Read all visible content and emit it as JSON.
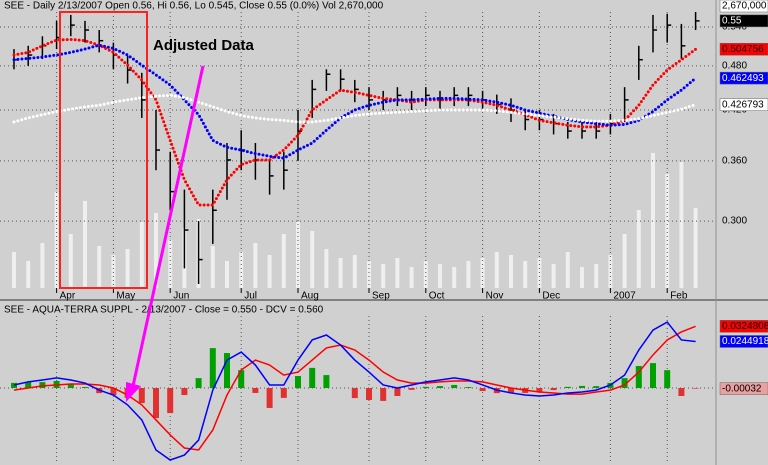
{
  "chart_data": [
    {
      "type": "ohlc",
      "title": "SEE - Daily 2/13/2007 Open 0.56, Hi 0.56, Lo 0.545, Close 0.55 (0.0%) Vol 2,670,000",
      "annotation": "Adjusted Data",
      "categories": [
        null,
        null,
        null,
        "Apr",
        null,
        null,
        null,
        "May",
        null,
        null,
        null,
        "Jun",
        null,
        null,
        null,
        null,
        "Jul",
        null,
        null,
        null,
        "Aug",
        null,
        null,
        null,
        null,
        "Sep",
        null,
        null,
        null,
        "Oct",
        null,
        null,
        null,
        "Nov",
        null,
        null,
        null,
        "Dec",
        null,
        null,
        null,
        null,
        "2007",
        null,
        null,
        null,
        "Feb",
        null,
        null
      ],
      "high": [
        0.505,
        0.51,
        0.525,
        0.55,
        0.56,
        0.55,
        0.535,
        0.515,
        0.495,
        0.47,
        0.42,
        0.37,
        0.33,
        0.3,
        0.33,
        0.38,
        0.395,
        0.38,
        0.36,
        0.37,
        0.42,
        0.46,
        0.475,
        0.475,
        0.46,
        0.45,
        0.445,
        0.45,
        0.445,
        0.45,
        0.445,
        0.45,
        0.45,
        0.445,
        0.44,
        0.435,
        0.42,
        0.42,
        0.415,
        0.405,
        0.405,
        0.405,
        0.415,
        0.45,
        0.51,
        0.56,
        0.562,
        0.545,
        0.565
      ],
      "low": [
        0.475,
        0.48,
        0.49,
        0.505,
        0.525,
        0.515,
        0.5,
        0.475,
        0.455,
        0.41,
        0.35,
        0.31,
        0.26,
        0.248,
        0.28,
        0.32,
        0.35,
        0.34,
        0.325,
        0.33,
        0.36,
        0.41,
        0.445,
        0.445,
        0.43,
        0.42,
        0.42,
        0.425,
        0.42,
        0.425,
        0.42,
        0.425,
        0.425,
        0.42,
        0.415,
        0.405,
        0.395,
        0.395,
        0.39,
        0.385,
        0.385,
        0.385,
        0.39,
        0.405,
        0.46,
        0.5,
        0.515,
        0.49,
        0.535
      ],
      "close": [
        0.489,
        0.496,
        0.51,
        0.523,
        0.543,
        0.535,
        0.518,
        0.496,
        0.474,
        0.433,
        0.372,
        0.328,
        0.292,
        0.267,
        0.31,
        0.361,
        0.372,
        0.361,
        0.344,
        0.35,
        0.394,
        0.447,
        0.468,
        0.461,
        0.447,
        0.433,
        0.433,
        0.439,
        0.433,
        0.439,
        0.433,
        0.439,
        0.439,
        0.433,
        0.427,
        0.42,
        0.408,
        0.408,
        0.403,
        0.394,
        0.394,
        0.394,
        0.403,
        0.433,
        0.489,
        0.535,
        0.543,
        0.51,
        0.55
      ],
      "color": "#000000",
      "close_tag": "0.55",
      "series": [
        {
          "color": "#ff0000",
          "style": "dotted",
          "tag": "0.504756",
          "tag_text_color": "#000000",
          "values": [
            0.496,
            0.5,
            0.51,
            0.519,
            0.52,
            0.518,
            0.511,
            0.5,
            0.481,
            0.46,
            0.433,
            0.383,
            0.34,
            0.315,
            0.315,
            0.34,
            0.356,
            0.361,
            0.361,
            0.372,
            0.389,
            0.42,
            0.433,
            0.446,
            0.443,
            0.439,
            0.435,
            0.433,
            0.43,
            0.433,
            0.433,
            0.433,
            0.433,
            0.43,
            0.426,
            0.42,
            0.414,
            0.407,
            0.404,
            0.401,
            0.399,
            0.399,
            0.401,
            0.407,
            0.426,
            0.453,
            0.474,
            0.489,
            0.504756
          ]
        },
        {
          "color": "#0000ff",
          "style": "dotted",
          "tag": "0.462493",
          "tag_text_color": "#ffffff",
          "values": [
            0.489,
            0.491,
            0.493,
            0.496,
            0.5,
            0.505,
            0.511,
            0.506,
            0.496,
            0.481,
            0.467,
            0.453,
            0.433,
            0.414,
            0.383,
            0.375,
            0.372,
            0.368,
            0.365,
            0.363,
            0.372,
            0.38,
            0.395,
            0.41,
            0.42,
            0.426,
            0.43,
            0.433,
            0.433,
            0.434,
            0.435,
            0.435,
            0.434,
            0.433,
            0.43,
            0.426,
            0.42,
            0.416,
            0.412,
            0.408,
            0.405,
            0.403,
            0.401,
            0.402,
            0.407,
            0.418,
            0.433,
            0.446,
            0.462493
          ]
        },
        {
          "color": "#ffffff",
          "style": "dotted",
          "tag": "0.426793",
          "tag_text_color": "#000000",
          "values": [
            0.405,
            0.41,
            0.414,
            0.418,
            0.421,
            0.424,
            0.426,
            0.43,
            0.433,
            0.436,
            0.438,
            0.439,
            0.436,
            0.43,
            0.424,
            0.418,
            0.413,
            0.41,
            0.408,
            0.407,
            0.405,
            0.405,
            0.407,
            0.41,
            0.413,
            0.415,
            0.416,
            0.417,
            0.418,
            0.419,
            0.42,
            0.42,
            0.42,
            0.42,
            0.419,
            0.417,
            0.415,
            0.413,
            0.411,
            0.409,
            0.407,
            0.406,
            0.406,
            0.407,
            0.409,
            0.413,
            0.417,
            0.421,
            0.426793
          ]
        }
      ],
      "volume": [
        1200000,
        900000,
        1500000,
        3200000,
        1800000,
        2900000,
        1400000,
        1100000,
        1300000,
        2200000,
        2500000,
        1600000,
        2000000,
        2300000,
        1400000,
        900000,
        1200000,
        1500000,
        1100000,
        1800000,
        2200000,
        1900000,
        1300000,
        1000000,
        1100000,
        900000,
        800000,
        1000000,
        700000,
        900000,
        800000,
        700000,
        900000,
        1000000,
        1200000,
        1100000,
        900000,
        1000000,
        800000,
        1200000,
        700000,
        800000,
        1100000,
        1800000,
        2600000,
        4500000,
        3800000,
        4200000,
        2670000
      ],
      "volume_color": "#f4f4f4",
      "volume_lim": [
        0,
        5000000
      ],
      "volume_tag": "2,670,000",
      "ylim": [
        0.245,
        0.565
      ],
      "log": true,
      "yticks": [
        {
          "value": 0.3,
          "label": "0.300"
        },
        {
          "value": 0.36,
          "label": "0.360"
        },
        {
          "value": 0.42,
          "label": "0.420"
        },
        {
          "value": 0.48,
          "label": "0.480"
        },
        {
          "value": 0.54,
          "label": "0.540"
        }
      ],
      "grid": true
    },
    {
      "type": "indicator",
      "title": "SEE - AQUA-TERRA SUPPL - 2/13/2007 - Close = 0.550 - DCV = 0.560",
      "series": [
        {
          "color": "#ff0000",
          "style": "solid",
          "tag": "0.0324808",
          "tag_text_color": "#000000",
          "values": [
            -0.0011,
            0,
            0.0011,
            0.0016,
            0.0021,
            0.0021,
            0.0016,
            0,
            -0.0037,
            -0.0089,
            -0.0168,
            -0.0247,
            -0.0316,
            -0.0326,
            -0.0221,
            -0.0037,
            0.0095,
            0.0147,
            0.0121,
            0.0068,
            0.0084,
            0.0147,
            0.0211,
            0.0226,
            0.02,
            0.0147,
            0.0084,
            0.0042,
            0.0026,
            0.0026,
            0.0032,
            0.0037,
            0.0037,
            0.0032,
            0.0016,
            0,
            -0.0011,
            -0.0021,
            -0.0026,
            -0.0032,
            -0.0032,
            -0.0021,
            -0.0011,
            0.0016,
            0.0084,
            0.0174,
            0.0253,
            0.0295,
            0.0324808
          ]
        },
        {
          "color": "#0000ff",
          "style": "solid",
          "tag": "0.0244918",
          "tag_text_color": "#ffffff",
          "values": [
            0.0016,
            0.0032,
            0.0042,
            0.0053,
            0.0042,
            0.0026,
            -0.0011,
            -0.0037,
            -0.0089,
            -0.0168,
            -0.0326,
            -0.0379,
            -0.0353,
            -0.0274,
            -0.0011,
            0.0147,
            0.0189,
            0.0121,
            0.0016,
            0.0016,
            0.0147,
            0.0253,
            0.0279,
            0.0226,
            0.0147,
            0.0084,
            0.0016,
            0,
            0.0016,
            0.0032,
            0.0042,
            0.0053,
            0.0042,
            0.0016,
            -0.0011,
            -0.0026,
            -0.0037,
            -0.0042,
            -0.0037,
            -0.0026,
            -0.0021,
            -0.0011,
            0.0016,
            0.0068,
            0.02,
            0.0305,
            0.0347,
            0.0253,
            0.0244918
          ]
        }
      ],
      "histogram": [
        0.0027,
        0.0032,
        0.0031,
        0.0037,
        0.0021,
        0.0005,
        -0.0027,
        -0.0037,
        -0.0052,
        -0.0079,
        -0.0158,
        -0.0132,
        -0.0037,
        0.0052,
        0.021,
        0.0184,
        0.0094,
        -0.0026,
        -0.0105,
        -0.0052,
        0.0063,
        0.0106,
        0.0068,
        0,
        -0.0053,
        -0.0063,
        -0.0068,
        -0.0042,
        -0.001,
        0.0006,
        0.001,
        0.0016,
        0.0005,
        -0.0016,
        -0.0027,
        -0.0026,
        -0.0026,
        -0.0021,
        -0.0011,
        0.0006,
        0.0011,
        0.001,
        0.0027,
        0.0052,
        0.0116,
        0.0131,
        0.0094,
        -0.0042,
        -0.00032
      ],
      "histogram_colors": {
        "up": "#00a000",
        "down": "#e03030"
      },
      "histogram_tag": "-0.00032",
      "ylim": [
        -0.04,
        0.0379
      ]
    }
  ]
}
